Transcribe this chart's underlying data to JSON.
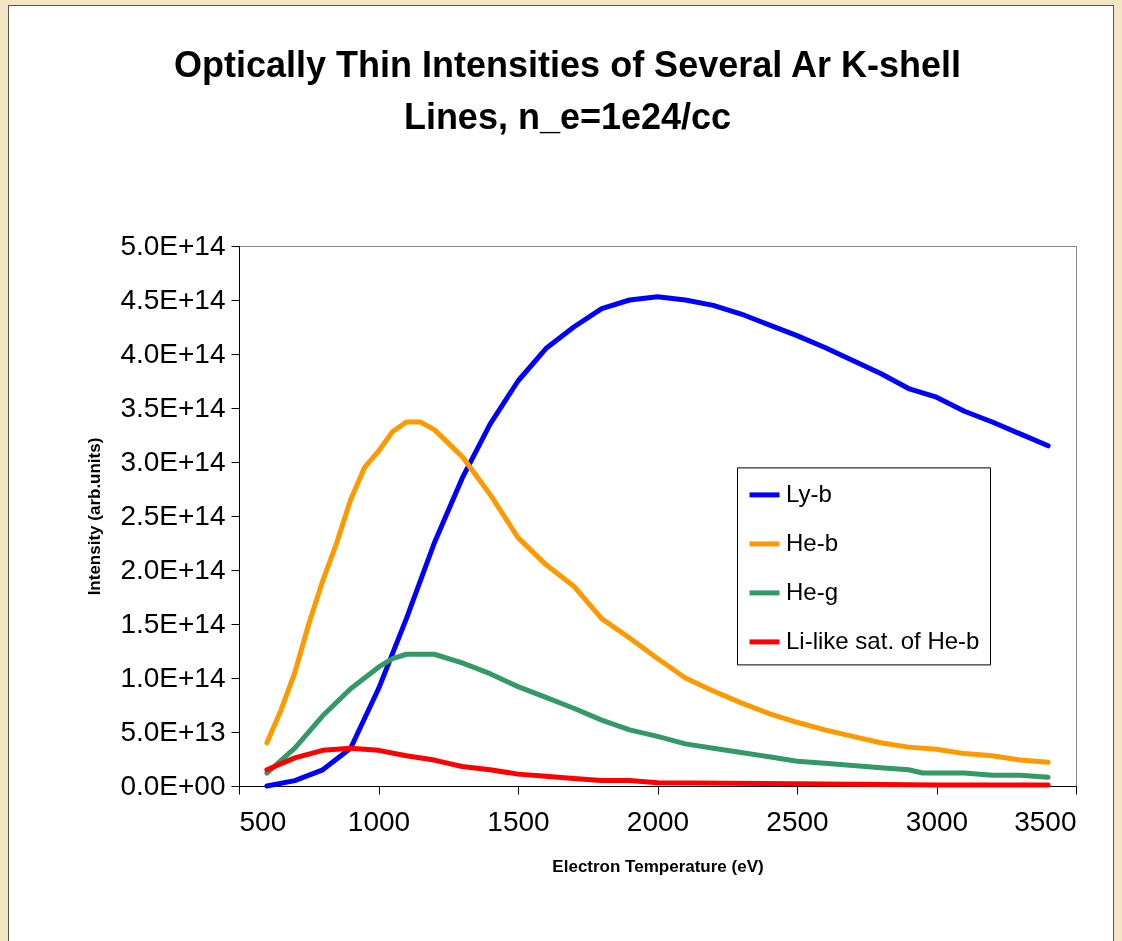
{
  "chart_data": {
    "type": "line",
    "title": [
      "Optically Thin Intensities of Several Ar K-shell",
      "Lines, n_e=1e24/cc"
    ],
    "xlabel": "Electron Temperature (eV)",
    "ylabel": "Intensity (arb.units)",
    "xlim": [
      500,
      3500
    ],
    "xticks": [
      500,
      1000,
      1500,
      2000,
      2500,
      3000,
      3500
    ],
    "ylim": [
      0,
      500000000000000.0
    ],
    "yticks": [
      {
        "value": 0,
        "label": "0.0E+00"
      },
      {
        "value": 50000000000000.0,
        "label": "5.0E+13"
      },
      {
        "value": 100000000000000.0,
        "label": "1.0E+14"
      },
      {
        "value": 150000000000000.0,
        "label": "1.5E+14"
      },
      {
        "value": 200000000000000.0,
        "label": "2.0E+14"
      },
      {
        "value": 250000000000000.0,
        "label": "2.5E+14"
      },
      {
        "value": 300000000000000.0,
        "label": "3.0E+14"
      },
      {
        "value": 350000000000000.0,
        "label": "3.5E+14"
      },
      {
        "value": 400000000000000.0,
        "label": "4.0E+14"
      },
      {
        "value": 450000000000000.0,
        "label": "4.5E+14"
      },
      {
        "value": 500000000000000.0,
        "label": "5.0E+14"
      }
    ],
    "grid": false,
    "legend": "right",
    "marker": "none",
    "line_style": "solid",
    "series": [
      {
        "name": "Ly-b",
        "color": "#0000ff",
        "x": [
          600,
          700,
          800,
          900,
          1000,
          1100,
          1200,
          1300,
          1400,
          1500,
          1600,
          1700,
          1800,
          1900,
          2000,
          2100,
          2200,
          2300,
          2400,
          2500,
          2600,
          2700,
          2800,
          2900,
          3000,
          3100,
          3200,
          3300,
          3400
        ],
        "values": [
          0,
          5000000000000.0,
          15000000000000.0,
          35000000000000.0,
          90000000000000.0,
          155000000000000.0,
          225000000000000.0,
          285000000000000.0,
          335000000000000.0,
          375000000000000.0,
          405000000000000.0,
          425000000000000.0,
          442000000000000.0,
          450000000000000.0,
          453000000000000.0,
          450000000000000.0,
          445000000000000.0,
          437000000000000.0,
          427000000000000.0,
          417000000000000.0,
          406000000000000.0,
          394000000000000.0,
          382000000000000.0,
          368000000000000.0,
          360000000000000.0,
          347000000000000.0,
          337000000000000.0,
          326000000000000.0,
          315000000000000.0
        ]
      },
      {
        "name": "He-b",
        "color": "#ff9900",
        "x": [
          600,
          650,
          700,
          750,
          800,
          850,
          900,
          950,
          1000,
          1050,
          1100,
          1150,
          1200,
          1300,
          1400,
          1500,
          1600,
          1700,
          1800,
          1900,
          2000,
          2100,
          2200,
          2300,
          2400,
          2500,
          2600,
          2700,
          2800,
          2900,
          3000,
          3100,
          3200,
          3300,
          3400
        ],
        "values": [
          40000000000000.0,
          70000000000000.0,
          105000000000000.0,
          150000000000000.0,
          190000000000000.0,
          225000000000000.0,
          265000000000000.0,
          295000000000000.0,
          310000000000000.0,
          328000000000000.0,
          337000000000000.0,
          337000000000000.0,
          330000000000000.0,
          305000000000000.0,
          270000000000000.0,
          230000000000000.0,
          205000000000000.0,
          185000000000000.0,
          155000000000000.0,
          137000000000000.0,
          118000000000000.0,
          100000000000000.0,
          88000000000000.0,
          77000000000000.0,
          67000000000000.0,
          59000000000000.0,
          52000000000000.0,
          46000000000000.0,
          40000000000000.0,
          36000000000000.0,
          34000000000000.0,
          30000000000000.0,
          28000000000000.0,
          24000000000000.0,
          22000000000000.0
        ]
      },
      {
        "name": "He-g",
        "color": "#339966",
        "x": [
          600,
          700,
          800,
          900,
          1000,
          1050,
          1100,
          1200,
          1300,
          1400,
          1500,
          1600,
          1700,
          1800,
          1900,
          2000,
          2100,
          2200,
          2300,
          2400,
          2500,
          2600,
          2700,
          2800,
          2900,
          2950,
          3100,
          3200,
          3300,
          3400
        ],
        "values": [
          12000000000000.0,
          35000000000000.0,
          65000000000000.0,
          90000000000000.0,
          110000000000000.0,
          118000000000000.0,
          122000000000000.0,
          122000000000000.0,
          114000000000000.0,
          104000000000000.0,
          92000000000000.0,
          82000000000000.0,
          72000000000000.0,
          61000000000000.0,
          52000000000000.0,
          46000000000000.0,
          39000000000000.0,
          35000000000000.0,
          31000000000000.0,
          27000000000000.0,
          23000000000000.0,
          21000000000000.0,
          19000000000000.0,
          17000000000000.0,
          15000000000000.0,
          12000000000000.0,
          12000000000000.0,
          10000000000000.0,
          10000000000000.0,
          8000000000000.0
        ]
      },
      {
        "name": "Li-like sat. of He-b",
        "color": "#ff0000",
        "x": [
          600,
          700,
          800,
          900,
          1000,
          1100,
          1200,
          1300,
          1400,
          1500,
          1600,
          1700,
          1800,
          1900,
          2000,
          2500,
          3000,
          3400
        ],
        "values": [
          15000000000000.0,
          26000000000000.0,
          33000000000000.0,
          35000000000000.0,
          33000000000000.0,
          28000000000000.0,
          24000000000000.0,
          18000000000000.0,
          15000000000000.0,
          11000000000000.0,
          9000000000000.0,
          7000000000000.0,
          5000000000000.0,
          5000000000000.0,
          3000000000000.0,
          2000000000000.0,
          1000000000000.0,
          1000000000000.0
        ]
      }
    ]
  }
}
